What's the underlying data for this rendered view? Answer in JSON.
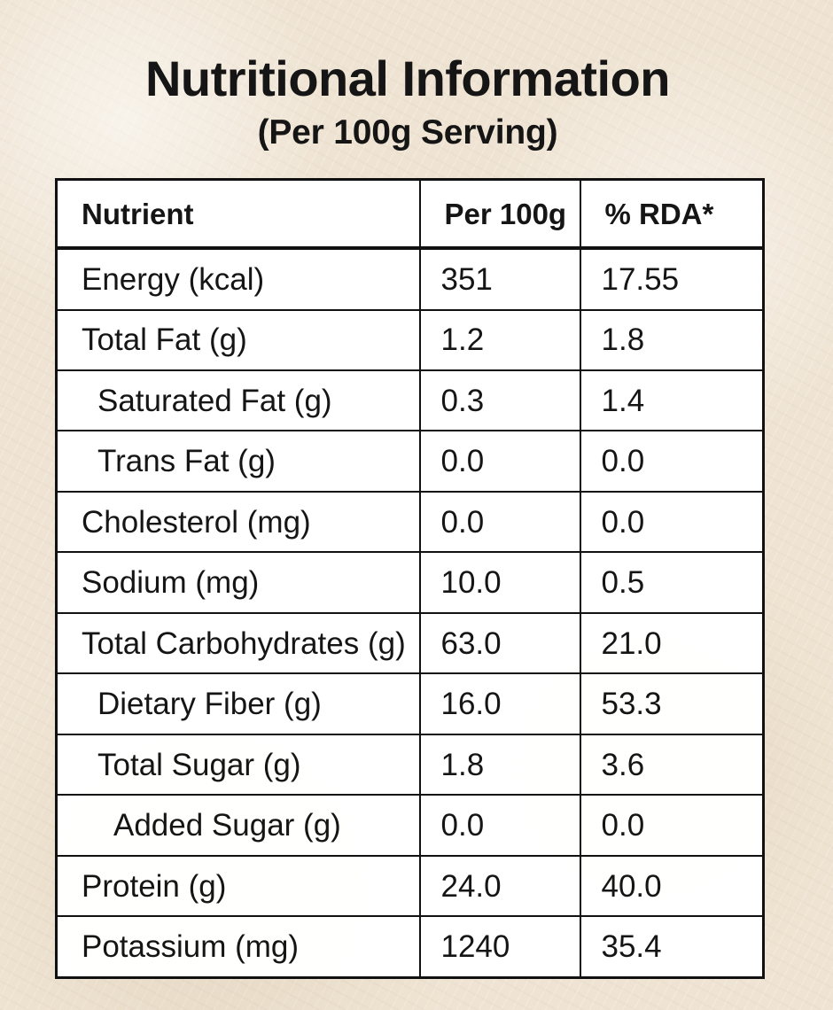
{
  "header": {
    "title": "Nutritional Information",
    "subtitle": "(Per 100g Serving)"
  },
  "table": {
    "headers": [
      "Nutrient",
      "Per 100g",
      "% RDA*"
    ],
    "rows": [
      {
        "nutrient": "Energy (kcal)",
        "per_100g": "351",
        "rda": "17.55"
      },
      {
        "nutrient": "Total Fat (g)",
        "per_100g": "1.2",
        "rda": "1.8"
      },
      {
        "nutrient": "Saturated Fat (g)",
        "per_100g": "0.3",
        "rda": "1.4"
      },
      {
        "nutrient": "Trans Fat (g)",
        "per_100g": "0.0",
        "rda": "0.0"
      },
      {
        "nutrient": "Cholesterol (mg)",
        "per_100g": "0.0",
        "rda": "0.0"
      },
      {
        "nutrient": "Sodium (mg)",
        "per_100g": "10.0",
        "rda": "0.5"
      },
      {
        "nutrient": "Total Carbohydrates (g)",
        "per_100g": "63.0",
        "rda": "21.0"
      },
      {
        "nutrient": "Dietary Fiber (g)",
        "per_100g": "16.0",
        "rda": "53.3"
      },
      {
        "nutrient": "Total Sugar (g)",
        "per_100g": "1.8",
        "rda": "3.6"
      },
      {
        "nutrient": "Added Sugar (g)",
        "per_100g": "0.0",
        "rda": "0.0"
      },
      {
        "nutrient": "Protein (g)",
        "per_100g": "24.0",
        "rda": "40.0"
      },
      {
        "nutrient": "Potassium (mg)",
        "per_100g": "1240",
        "rda": "35.4"
      }
    ]
  }
}
